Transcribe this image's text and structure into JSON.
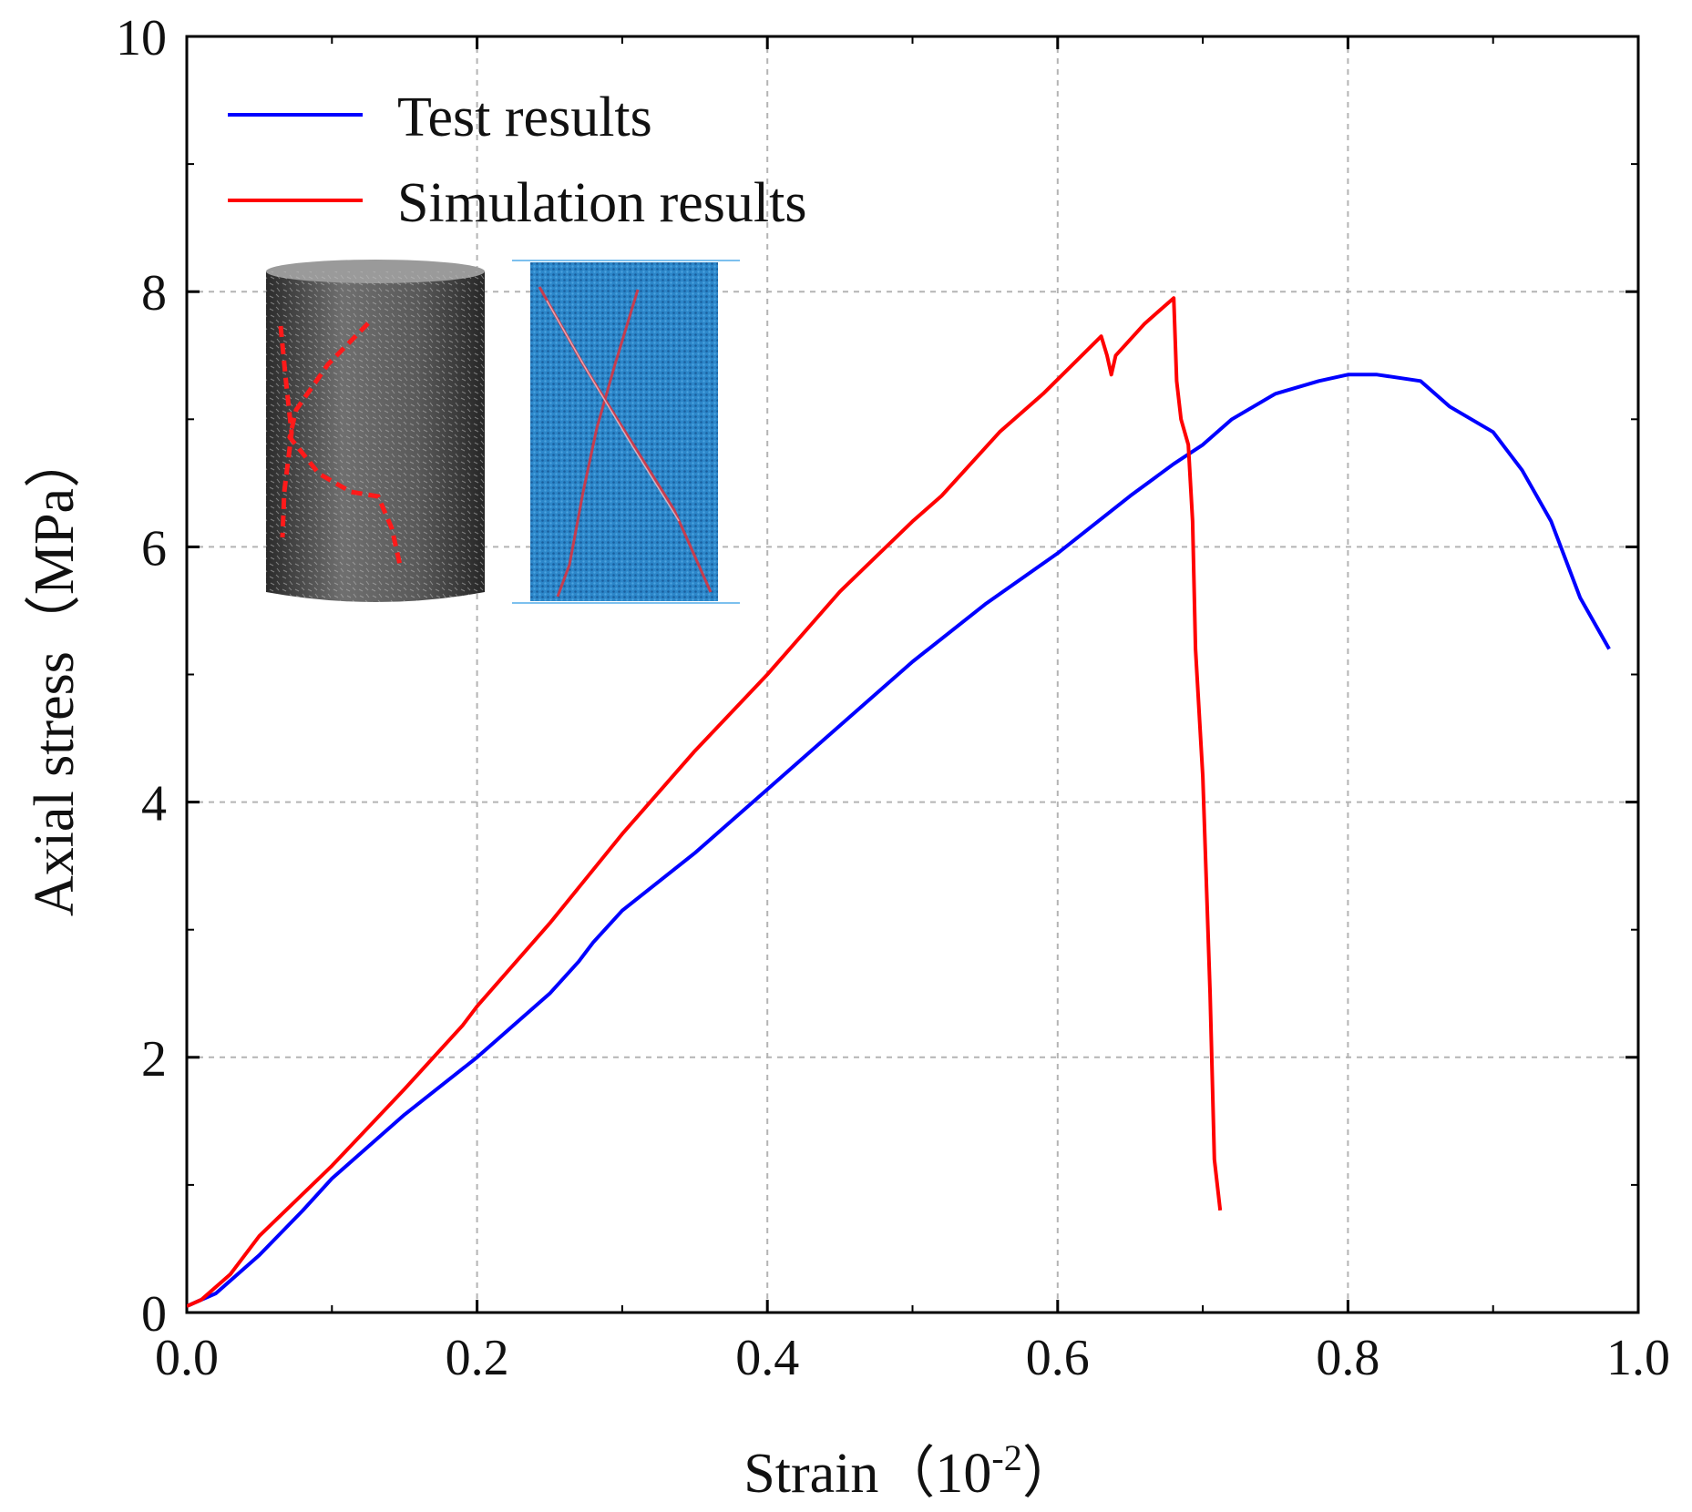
{
  "chart_data": {
    "type": "line",
    "xlabel": "Strain（10",
    "xlabel_sup": "-2",
    "xlabel_close": "）",
    "ylabel": "Axial stress（MPa）",
    "xlim": [
      0.0,
      1.0
    ],
    "ylim": [
      0,
      10
    ],
    "x_ticks": [
      "0.0",
      "0.2",
      "0.4",
      "0.6",
      "0.8",
      "1.0"
    ],
    "y_ticks": [
      "0",
      "2",
      "4",
      "6",
      "8",
      "10"
    ],
    "grid": true,
    "legend_position": "top-left",
    "series": [
      {
        "name": "Test results",
        "color": "#0000ff",
        "x": [
          0.0,
          0.01,
          0.02,
          0.05,
          0.08,
          0.1,
          0.15,
          0.2,
          0.25,
          0.27,
          0.28,
          0.3,
          0.35,
          0.4,
          0.45,
          0.5,
          0.55,
          0.6,
          0.65,
          0.68,
          0.7,
          0.72,
          0.75,
          0.78,
          0.8,
          0.82,
          0.85,
          0.87,
          0.9,
          0.92,
          0.94,
          0.96,
          0.98
        ],
        "y": [
          0.05,
          0.1,
          0.15,
          0.45,
          0.8,
          1.05,
          1.55,
          2.0,
          2.5,
          2.75,
          2.9,
          3.15,
          3.6,
          4.1,
          4.6,
          5.1,
          5.55,
          5.95,
          6.4,
          6.65,
          6.8,
          7.0,
          7.2,
          7.3,
          7.35,
          7.35,
          7.3,
          7.1,
          6.9,
          6.6,
          6.2,
          5.6,
          5.2
        ]
      },
      {
        "name": "Simulation results",
        "color": "#ff0000",
        "x": [
          0.0,
          0.01,
          0.03,
          0.05,
          0.1,
          0.15,
          0.19,
          0.2,
          0.25,
          0.3,
          0.35,
          0.4,
          0.45,
          0.5,
          0.52,
          0.56,
          0.59,
          0.63,
          0.634,
          0.637,
          0.64,
          0.66,
          0.68,
          0.682,
          0.685,
          0.69,
          0.693,
          0.695,
          0.7,
          0.705,
          0.708,
          0.712
        ],
        "y": [
          0.05,
          0.1,
          0.3,
          0.6,
          1.15,
          1.75,
          2.25,
          2.4,
          3.05,
          3.75,
          4.4,
          5.0,
          5.65,
          6.2,
          6.4,
          6.9,
          7.2,
          7.65,
          7.5,
          7.35,
          7.5,
          7.75,
          7.95,
          7.3,
          7.0,
          6.8,
          6.2,
          5.2,
          4.2,
          2.5,
          1.2,
          0.8
        ]
      }
    ]
  },
  "colors": {
    "test": "#0000ff",
    "simulation": "#ff0000",
    "axis": "#000000",
    "grid": "#b4b4b4",
    "specimen_face": "#5a5a5a",
    "model_fill": "#2a7fc4"
  }
}
